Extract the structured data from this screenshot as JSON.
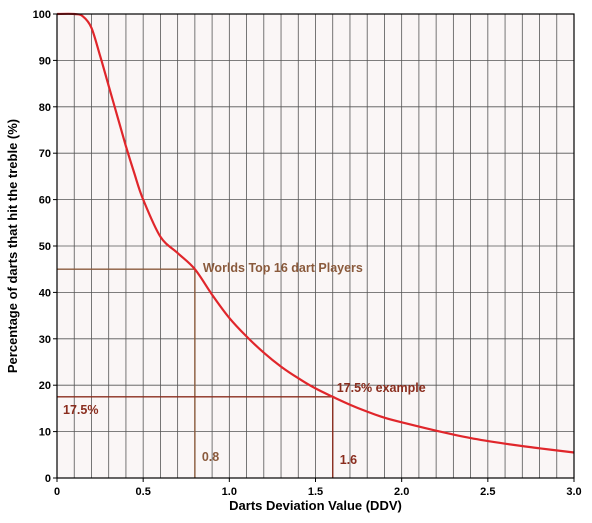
{
  "chart_data": {
    "type": "line",
    "title": "",
    "xlabel": "Darts Deviation Value (DDV)",
    "ylabel": "Percentage of darts that hit the treble (%)",
    "xlim": [
      0,
      3.0
    ],
    "ylim": [
      0,
      100
    ],
    "grid": true,
    "xticks": [
      "0",
      "0.5",
      "1.0",
      "1.5",
      "2.0",
      "2.5",
      "3.0"
    ],
    "yticks": [
      "0",
      "10",
      "20",
      "30",
      "40",
      "50",
      "60",
      "70",
      "80",
      "90",
      "100"
    ],
    "series": [
      {
        "color": "#e0262b",
        "x": [
          0,
          0.1,
          0.15,
          0.2,
          0.25,
          0.3,
          0.35,
          0.4,
          0.45,
          0.5,
          0.6,
          0.7,
          0.8,
          0.9,
          1.0,
          1.1,
          1.2,
          1.3,
          1.4,
          1.5,
          1.6,
          1.7,
          1.8,
          1.9,
          2.0,
          2.2,
          2.4,
          2.6,
          2.8,
          3.0
        ],
        "y": [
          100,
          100,
          99.5,
          97,
          91,
          84.5,
          78,
          71.5,
          65.5,
          60,
          52,
          48.5,
          45,
          39.5,
          34.5,
          30.5,
          27,
          24,
          21.5,
          19.3,
          17.5,
          15.8,
          14.3,
          13,
          12,
          10.2,
          8.6,
          7.4,
          6.4,
          5.5
        ]
      }
    ],
    "annotations": [
      {
        "text": "Worlds Top 16 dart Players",
        "x": 0.8,
        "y": 45,
        "color": "#8a5a3c"
      },
      {
        "text": "17.5% example",
        "x": 1.6,
        "y": 17.5,
        "color": "#8a2d1e"
      },
      {
        "text": "17.5%",
        "x": 0,
        "y": 17.5,
        "color": "#8a2d1e"
      },
      {
        "text": "0.8",
        "x": 0.8,
        "y": 0,
        "color": "#8a5a3c"
      },
      {
        "text": "1.6",
        "x": 1.6,
        "y": 0,
        "color": "#8a2d1e"
      }
    ],
    "guides": [
      {
        "x": 0.8,
        "y": 45,
        "color": "#8a5a3c"
      },
      {
        "x": 1.6,
        "y": 17.5,
        "color": "#8a2d1e"
      }
    ]
  }
}
